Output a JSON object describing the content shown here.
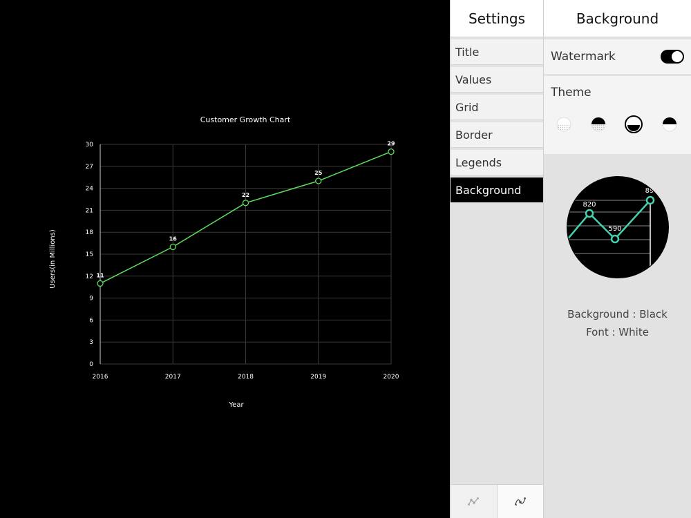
{
  "chart_data": {
    "type": "line",
    "title": "Customer Growth Chart",
    "xlabel": "Year",
    "ylabel": "Users(in Millions)",
    "categories": [
      "2016",
      "2017",
      "2018",
      "2019",
      "2020"
    ],
    "series": [
      {
        "values": [
          11,
          16,
          22,
          25,
          29
        ]
      }
    ],
    "data_labels": [
      "11",
      "16",
      "22",
      "25",
      "29"
    ],
    "ylim": [
      0,
      30
    ],
    "yticks": [
      "0",
      "3",
      "6",
      "9",
      "12",
      "15",
      "18",
      "21",
      "24",
      "27",
      "30"
    ],
    "grid": true,
    "line_color": "#5ddc5d",
    "background": "#000000"
  },
  "settings": {
    "title": "Settings",
    "items": [
      {
        "label": "Title",
        "active": false
      },
      {
        "label": "Values",
        "active": false
      },
      {
        "label": "Grid",
        "active": false
      },
      {
        "label": "Border",
        "active": false
      },
      {
        "label": "Legends",
        "active": false
      },
      {
        "label": "Background",
        "active": true
      }
    ],
    "bottom_icons": [
      "line-chart-icon",
      "curve-chart-icon"
    ]
  },
  "background_panel": {
    "title": "Background",
    "watermark_label": "Watermark",
    "watermark_on": true,
    "theme_label": "Theme",
    "themes": [
      "theme-dotted-icon",
      "theme-half-top-icon",
      "theme-half-bottom-icon",
      "theme-half-dark-icon"
    ],
    "selected_theme": 2,
    "preview_labels": [
      "820",
      "590",
      "89"
    ],
    "preview_line_color": "#45d2b0",
    "caption_background": "Background : Black",
    "caption_font": "Font : White"
  }
}
